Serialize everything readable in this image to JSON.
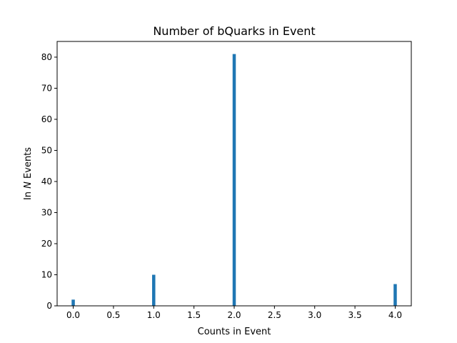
{
  "chart_data": {
    "type": "bar",
    "title": "Number of bQuarks in Event",
    "xlabel": "Counts in Event",
    "ylabel_prefix": "In ",
    "ylabel_italic": "N",
    "ylabel_suffix": " Events",
    "x": [
      0,
      1,
      2,
      4
    ],
    "values": [
      2,
      10,
      81,
      7
    ],
    "bar_width": 0.04,
    "xlim": [
      -0.2,
      4.2
    ],
    "ylim": [
      0,
      85.05
    ],
    "xticks": [
      0.0,
      0.5,
      1.0,
      1.5,
      2.0,
      2.5,
      3.0,
      3.5,
      4.0
    ],
    "xtick_labels": [
      "0.0",
      "0.5",
      "1.0",
      "1.5",
      "2.0",
      "2.5",
      "3.0",
      "3.5",
      "4.0"
    ],
    "yticks": [
      0,
      10,
      20,
      30,
      40,
      50,
      60,
      70,
      80
    ],
    "ytick_labels": [
      "0",
      "10",
      "20",
      "30",
      "40",
      "50",
      "60",
      "70",
      "80"
    ],
    "bar_color": "#1f77b4",
    "grid": false,
    "legend": "none"
  }
}
